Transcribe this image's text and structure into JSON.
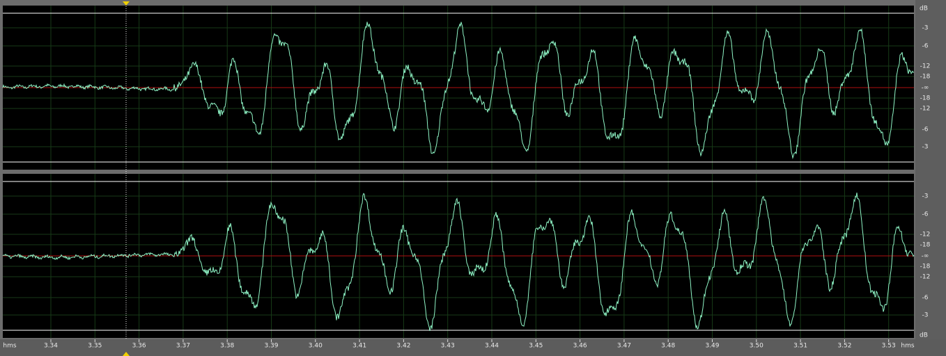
{
  "time_ruler": {
    "unit_left": "hms",
    "labels": [
      "3.34",
      "3.35",
      "3.36",
      "3.37",
      "3.38",
      "3.39",
      "3.40",
      "3.41",
      "3.42",
      "3.43",
      "3.44",
      "3.45",
      "3.46",
      "3.47",
      "3.48",
      "3.49",
      "3.50",
      "3.51",
      "3.52",
      "3.53"
    ],
    "unit_right": "hms"
  },
  "channels": [
    {
      "db_unit": "dB",
      "db_labels": [
        "-3",
        "-6",
        "-12",
        "-18",
        "-∞",
        "-18",
        "-12",
        "-6",
        "-3"
      ]
    },
    {
      "db_unit": "dB",
      "db_labels": [
        "-3",
        "-6",
        "-12",
        "-18",
        "-∞",
        "-18",
        "-12",
        "-6",
        "-3"
      ]
    }
  ]
}
